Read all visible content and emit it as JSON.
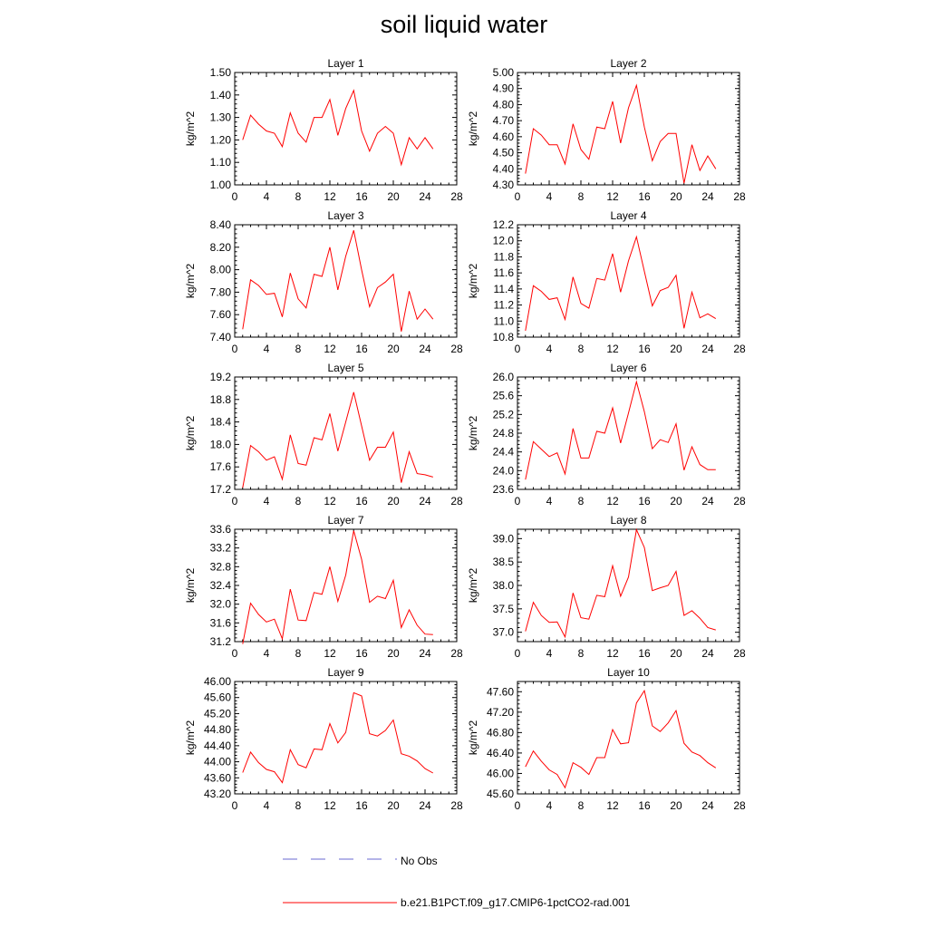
{
  "title": "soil liquid water",
  "colors": {
    "model_line": "#ff0000",
    "obs_line": "#6a6ad0",
    "axis": "#000000"
  },
  "legend": [
    {
      "label": "No Obs",
      "style": "dashed",
      "color": "#6a6ad0"
    },
    {
      "label": "b.e21.B1PCT.f09_g17.CMIP6-1pctCO2-rad.001",
      "style": "solid",
      "color": "#ff0000"
    }
  ],
  "chart_data": [
    {
      "type": "line",
      "title": "Layer 1",
      "ylabel": "kg/m^2",
      "xlim": [
        0,
        28
      ],
      "ylim": [
        1.0,
        1.5
      ],
      "xticks": [
        "0",
        "4",
        "8",
        "12",
        "16",
        "20",
        "24",
        "28"
      ],
      "yticks": [
        "1.00",
        "1.10",
        "1.20",
        "1.30",
        "1.40",
        "1.50"
      ],
      "x": [
        1,
        2,
        3,
        4,
        5,
        6,
        7,
        8,
        9,
        10,
        11,
        12,
        13,
        14,
        15,
        16,
        17,
        18,
        19,
        20,
        21,
        22,
        23,
        24,
        25
      ],
      "series": [
        {
          "name": "b.e21.B1PCT.f09_g17.CMIP6-1pctCO2-rad.001",
          "values": [
            1.2,
            1.31,
            1.27,
            1.24,
            1.23,
            1.17,
            1.32,
            1.23,
            1.19,
            1.3,
            1.3,
            1.38,
            1.22,
            1.34,
            1.42,
            1.24,
            1.15,
            1.23,
            1.26,
            1.23,
            1.09,
            1.21,
            1.16,
            1.21,
            1.16
          ]
        }
      ]
    },
    {
      "type": "line",
      "title": "Layer 2",
      "ylabel": "kg/m^2",
      "xlim": [
        0,
        28
      ],
      "ylim": [
        4.3,
        5.0
      ],
      "xticks": [
        "0",
        "4",
        "8",
        "12",
        "16",
        "20",
        "24",
        "28"
      ],
      "yticks": [
        "4.30",
        "4.40",
        "4.50",
        "4.60",
        "4.70",
        "4.80",
        "4.90",
        "5.00"
      ],
      "x": [
        1,
        2,
        3,
        4,
        5,
        6,
        7,
        8,
        9,
        10,
        11,
        12,
        13,
        14,
        15,
        16,
        17,
        18,
        19,
        20,
        21,
        22,
        23,
        24,
        25
      ],
      "series": [
        {
          "name": "b.e21.B1PCT.f09_g17.CMIP6-1pctCO2-rad.001",
          "values": [
            4.37,
            4.65,
            4.61,
            4.55,
            4.55,
            4.43,
            4.68,
            4.52,
            4.46,
            4.66,
            4.65,
            4.82,
            4.56,
            4.78,
            4.92,
            4.66,
            4.45,
            4.57,
            4.62,
            4.62,
            4.31,
            4.55,
            4.39,
            4.48,
            4.4
          ]
        }
      ]
    },
    {
      "type": "line",
      "title": "Layer 3",
      "ylabel": "kg/m^2",
      "xlim": [
        0,
        28
      ],
      "ylim": [
        7.4,
        8.4
      ],
      "xticks": [
        "0",
        "4",
        "8",
        "12",
        "16",
        "20",
        "24",
        "28"
      ],
      "yticks": [
        "7.40",
        "7.60",
        "7.80",
        "8.00",
        "8.20",
        "8.40"
      ],
      "x": [
        1,
        2,
        3,
        4,
        5,
        6,
        7,
        8,
        9,
        10,
        11,
        12,
        13,
        14,
        15,
        16,
        17,
        18,
        19,
        20,
        21,
        22,
        23,
        24,
        25
      ],
      "series": [
        {
          "name": "b.e21.B1PCT.f09_g17.CMIP6-1pctCO2-rad.001",
          "values": [
            7.47,
            7.91,
            7.86,
            7.78,
            7.79,
            7.58,
            7.97,
            7.74,
            7.66,
            7.96,
            7.94,
            8.2,
            7.82,
            8.12,
            8.35,
            8.0,
            7.67,
            7.84,
            7.89,
            7.96,
            7.45,
            7.81,
            7.56,
            7.65,
            7.56
          ]
        }
      ]
    },
    {
      "type": "line",
      "title": "Layer 4",
      "ylabel": "kg/m^2",
      "xlim": [
        0,
        28
      ],
      "ylim": [
        10.8,
        12.2
      ],
      "xticks": [
        "0",
        "4",
        "8",
        "12",
        "16",
        "20",
        "24",
        "28"
      ],
      "yticks": [
        "10.8",
        "11.0",
        "11.2",
        "11.4",
        "11.6",
        "11.8",
        "12.0",
        "12.2"
      ],
      "x": [
        1,
        2,
        3,
        4,
        5,
        6,
        7,
        8,
        9,
        10,
        11,
        12,
        13,
        14,
        15,
        16,
        17,
        18,
        19,
        20,
        21,
        22,
        23,
        24,
        25
      ],
      "series": [
        {
          "name": "b.e21.B1PCT.f09_g17.CMIP6-1pctCO2-rad.001",
          "values": [
            10.88,
            11.44,
            11.37,
            11.27,
            11.29,
            11.02,
            11.55,
            11.22,
            11.16,
            11.53,
            11.51,
            11.84,
            11.36,
            11.75,
            12.05,
            11.62,
            11.19,
            11.38,
            11.42,
            11.57,
            10.91,
            11.36,
            11.04,
            11.09,
            11.03
          ]
        }
      ]
    },
    {
      "type": "line",
      "title": "Layer 5",
      "ylabel": "kg/m^2",
      "xlim": [
        0,
        28
      ],
      "ylim": [
        17.2,
        19.2
      ],
      "xticks": [
        "0",
        "4",
        "8",
        "12",
        "16",
        "20",
        "24",
        "28"
      ],
      "yticks": [
        "17.2",
        "17.6",
        "18.0",
        "18.4",
        "18.8",
        "19.2"
      ],
      "x": [
        1,
        2,
        3,
        4,
        5,
        6,
        7,
        8,
        9,
        10,
        11,
        12,
        13,
        14,
        15,
        16,
        17,
        18,
        19,
        20,
        21,
        22,
        23,
        24,
        25
      ],
      "series": [
        {
          "name": "b.e21.B1PCT.f09_g17.CMIP6-1pctCO2-rad.001",
          "values": [
            17.23,
            17.98,
            17.87,
            17.72,
            17.78,
            17.38,
            18.17,
            17.66,
            17.63,
            18.12,
            18.08,
            18.55,
            17.88,
            18.4,
            18.93,
            18.33,
            17.72,
            17.95,
            17.95,
            18.22,
            17.32,
            17.87,
            17.48,
            17.46,
            17.42
          ]
        }
      ]
    },
    {
      "type": "line",
      "title": "Layer 6",
      "ylabel": "kg/m^2",
      "xlim": [
        0,
        28
      ],
      "ylim": [
        23.6,
        26.0
      ],
      "xticks": [
        "0",
        "4",
        "8",
        "12",
        "16",
        "20",
        "24",
        "28"
      ],
      "yticks": [
        "23.6",
        "24.0",
        "24.4",
        "24.8",
        "25.2",
        "25.6",
        "26.0"
      ],
      "x": [
        1,
        2,
        3,
        4,
        5,
        6,
        7,
        8,
        9,
        10,
        11,
        12,
        13,
        14,
        15,
        16,
        17,
        18,
        19,
        20,
        21,
        22,
        23,
        24,
        25
      ],
      "series": [
        {
          "name": "b.e21.B1PCT.f09_g17.CMIP6-1pctCO2-rad.001",
          "values": [
            23.81,
            24.62,
            24.46,
            24.3,
            24.38,
            23.93,
            24.9,
            24.27,
            24.27,
            24.84,
            24.8,
            25.34,
            24.59,
            25.23,
            25.9,
            25.26,
            24.47,
            24.66,
            24.6,
            25.0,
            24.01,
            24.51,
            24.13,
            24.02,
            24.02
          ]
        }
      ]
    },
    {
      "type": "line",
      "title": "Layer 7",
      "ylabel": "kg/m^2",
      "xlim": [
        0,
        28
      ],
      "ylim": [
        31.2,
        33.6
      ],
      "xticks": [
        "0",
        "4",
        "8",
        "12",
        "16",
        "20",
        "24",
        "28"
      ],
      "yticks": [
        "31.2",
        "31.6",
        "32.0",
        "32.4",
        "32.8",
        "33.2",
        "33.6"
      ],
      "x": [
        1,
        2,
        3,
        4,
        5,
        6,
        7,
        8,
        9,
        10,
        11,
        12,
        13,
        14,
        15,
        16,
        17,
        18,
        19,
        20,
        21,
        22,
        23,
        24,
        25
      ],
      "series": [
        {
          "name": "b.e21.B1PCT.f09_g17.CMIP6-1pctCO2-rad.001",
          "values": [
            31.15,
            32.02,
            31.78,
            31.62,
            31.68,
            31.26,
            32.32,
            31.66,
            31.65,
            32.25,
            32.21,
            32.8,
            32.06,
            32.62,
            33.57,
            32.96,
            32.04,
            32.17,
            32.12,
            32.51,
            31.5,
            31.88,
            31.55,
            31.36,
            31.35
          ]
        }
      ]
    },
    {
      "type": "line",
      "title": "Layer 8",
      "ylabel": "kg/m^2",
      "xlim": [
        0,
        28
      ],
      "ylim": [
        36.8,
        39.2
      ],
      "xticks": [
        "0",
        "4",
        "8",
        "12",
        "16",
        "20",
        "24",
        "28"
      ],
      "yticks": [
        "37.0",
        "37.5",
        "38.0",
        "38.5",
        "39.0"
      ],
      "x": [
        1,
        2,
        3,
        4,
        5,
        6,
        7,
        8,
        9,
        10,
        11,
        12,
        13,
        14,
        15,
        16,
        17,
        18,
        19,
        20,
        21,
        22,
        23,
        24,
        25
      ],
      "series": [
        {
          "name": "b.e21.B1PCT.f09_g17.CMIP6-1pctCO2-rad.001",
          "values": [
            37.02,
            37.64,
            37.36,
            37.21,
            37.22,
            36.9,
            37.84,
            37.31,
            37.28,
            37.79,
            37.76,
            38.42,
            37.77,
            38.18,
            39.19,
            38.81,
            37.89,
            37.95,
            38.0,
            38.3,
            37.36,
            37.46,
            37.3,
            37.1,
            37.05
          ]
        }
      ]
    },
    {
      "type": "line",
      "title": "Layer 9",
      "ylabel": "kg/m^2",
      "xlim": [
        0,
        28
      ],
      "ylim": [
        43.2,
        46.0
      ],
      "xticks": [
        "0",
        "4",
        "8",
        "12",
        "16",
        "20",
        "24",
        "28"
      ],
      "yticks": [
        "43.20",
        "43.60",
        "44.00",
        "44.40",
        "44.80",
        "45.20",
        "45.60",
        "46.00"
      ],
      "x": [
        1,
        2,
        3,
        4,
        5,
        6,
        7,
        8,
        9,
        10,
        11,
        12,
        13,
        14,
        15,
        16,
        17,
        18,
        19,
        20,
        21,
        22,
        23,
        24,
        25
      ],
      "series": [
        {
          "name": "b.e21.B1PCT.f09_g17.CMIP6-1pctCO2-rad.001",
          "values": [
            43.73,
            44.24,
            43.98,
            43.81,
            43.75,
            43.48,
            44.3,
            43.93,
            43.85,
            44.32,
            44.3,
            44.95,
            44.47,
            44.73,
            45.72,
            45.64,
            44.7,
            44.64,
            44.78,
            45.04,
            44.2,
            44.14,
            44.02,
            43.83,
            43.72
          ]
        }
      ]
    },
    {
      "type": "line",
      "title": "Layer 10",
      "ylabel": "kg/m^2",
      "xlim": [
        0,
        28
      ],
      "ylim": [
        45.6,
        47.8
      ],
      "xticks": [
        "0",
        "4",
        "8",
        "12",
        "16",
        "20",
        "24",
        "28"
      ],
      "yticks": [
        "45.60",
        "46.00",
        "46.40",
        "46.80",
        "47.20",
        "47.60"
      ],
      "x": [
        1,
        2,
        3,
        4,
        5,
        6,
        7,
        8,
        9,
        10,
        11,
        12,
        13,
        14,
        15,
        16,
        17,
        18,
        19,
        20,
        21,
        22,
        23,
        24,
        25
      ],
      "series": [
        {
          "name": "b.e21.B1PCT.f09_g17.CMIP6-1pctCO2-rad.001",
          "values": [
            46.13,
            46.44,
            46.24,
            46.07,
            45.98,
            45.72,
            46.21,
            46.12,
            45.98,
            46.31,
            46.31,
            46.86,
            46.58,
            46.6,
            47.38,
            47.62,
            46.93,
            46.82,
            46.99,
            47.23,
            46.59,
            46.42,
            46.35,
            46.21,
            46.11
          ]
        }
      ]
    }
  ]
}
